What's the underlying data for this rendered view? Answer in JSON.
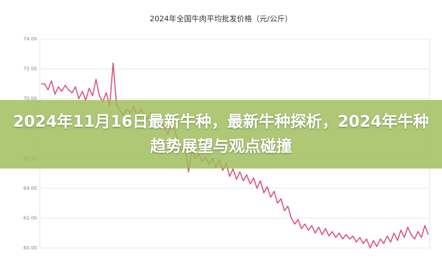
{
  "chart_data": {
    "type": "line",
    "title": "2024年全国牛肉平均批发价格（元/公斤）",
    "overlay_text": "2024年11月16日最新牛种，最新牛种探析，2024年牛种趋势展望与观点碰撞",
    "color": "#d9527f",
    "values": [
      71.0,
      71.0,
      70.6,
      71.2,
      70.3,
      70.8,
      70.5,
      70.9,
      70.6,
      70.4,
      70.8,
      70.0,
      70.5,
      69.9,
      70.7,
      70.2,
      71.3,
      70.2,
      69.8,
      70.4,
      69.5,
      72.4,
      69.6,
      69.2,
      68.9,
      69.3,
      69.0,
      69.5,
      68.8,
      69.3,
      69.0,
      68.6,
      69.1,
      68.7,
      68.9,
      68.4,
      68.0,
      67.6,
      68.2,
      67.9,
      67.0,
      66.5,
      66.8,
      65.1,
      66.6,
      66.0,
      66.3,
      65.8,
      66.1,
      65.6,
      66.0,
      65.4,
      65.9,
      65.2,
      65.7,
      64.8,
      65.3,
      64.6,
      65.1,
      64.5,
      64.9,
      64.3,
      64.7,
      64.0,
      64.5,
      63.7,
      64.1,
      63.4,
      63.8,
      63.0,
      63.3,
      62.5,
      62.8,
      62.0,
      61.6,
      61.9,
      61.3,
      61.6,
      61.2,
      61.5,
      61.0,
      61.4,
      60.9,
      61.3,
      60.8,
      61.1,
      60.7,
      61.0,
      60.6,
      60.9,
      60.6,
      60.8,
      60.4,
      60.7,
      60.3,
      60.6,
      60.0,
      60.5,
      60.1,
      60.6,
      60.3,
      60.8,
      60.4,
      61.0,
      60.5,
      61.2,
      60.7,
      61.4,
      60.9,
      60.6,
      61.1,
      60.7,
      61.5,
      60.9
    ],
    "ylim": [
      60,
      74
    ],
    "yticks": [
      {
        "value": 60,
        "label": "60.00"
      },
      {
        "value": 62,
        "label": "62.00"
      },
      {
        "value": 64,
        "label": "64.00"
      },
      {
        "value": 66,
        "label": "66.00"
      },
      {
        "value": 68,
        "label": "68.00"
      },
      {
        "value": 70,
        "label": "70.00"
      },
      {
        "value": 72,
        "label": "72.00"
      },
      {
        "value": 74,
        "label": "74.00"
      }
    ],
    "grid": true
  }
}
